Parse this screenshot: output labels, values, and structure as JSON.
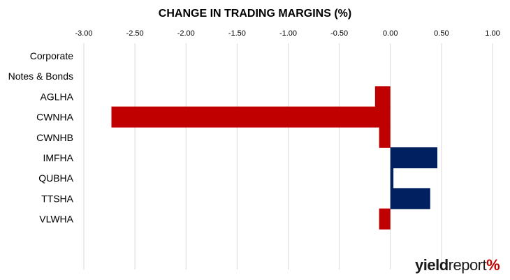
{
  "chart_data": {
    "type": "bar",
    "orientation": "horizontal",
    "title": "CHANGE IN TRADING MARGINS (%)",
    "xlabel": "",
    "ylabel": "",
    "xlim": [
      -3.0,
      1.0
    ],
    "x_ticks": [
      "-3.00",
      "-2.50",
      "-2.00",
      "-1.50",
      "-1.00",
      "-0.50",
      "0.00",
      "0.50",
      "1.00"
    ],
    "x_axis_position": "top",
    "grid": true,
    "legend": "none",
    "category_header": [
      "Corporate",
      "Notes & Bonds"
    ],
    "categories": [
      "AGLHA",
      "CWNHA",
      "CWNHB",
      "IMFHA",
      "QUBHA",
      "TTSHA",
      "VLWHA"
    ],
    "values": [
      -0.15,
      -2.73,
      -0.11,
      0.46,
      0.03,
      0.39,
      -0.11
    ],
    "colors": {
      "negative": "#c00000",
      "positive": "#002060",
      "grid": "#d9d9d9"
    }
  },
  "branding": {
    "yield": "yield",
    "report": "report",
    "pct": "%"
  }
}
